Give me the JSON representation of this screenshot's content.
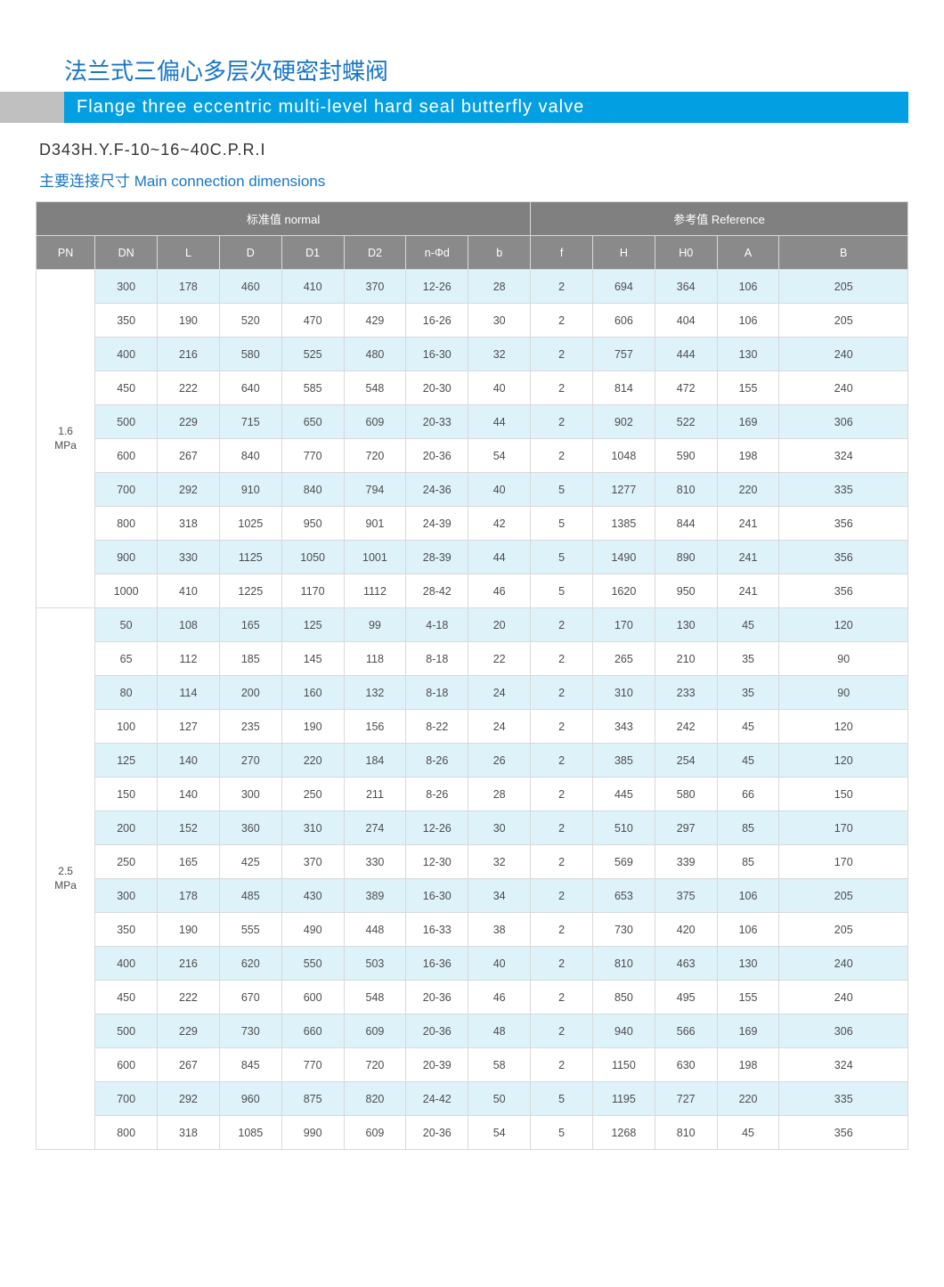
{
  "colors": {
    "title": "#1976c8",
    "banner_grey": "#c0c0c0",
    "banner_blue": "#039fe3",
    "header_bg_top": "#808080",
    "header_bg_cols": "#8a8a8a",
    "stripe_blue": "#def2fa",
    "stripe_white": "#ffffff",
    "border": "#d9d9d9",
    "text": "#4d4d4d"
  },
  "titles": {
    "chinese": "法兰式三偏心多层次硬密封蝶阀",
    "english": "Flange three eccentric multi-level hard seal butterfly valve",
    "model": "D343H.Y.F-10~16~40C.P.R.I",
    "subtitle": "主要连接尺寸   Main connection  dimensions"
  },
  "table": {
    "top_headers": {
      "normal": "标准值 normal",
      "reference": "参考值 Reference"
    },
    "columns": [
      "PN",
      "DN",
      "L",
      "D",
      "D1",
      "D2",
      "n-Φd",
      "b",
      "f",
      "H",
      "H0",
      "A",
      "B"
    ],
    "normal_cols": 8,
    "reference_cols": 5,
    "groups": [
      {
        "pn": "1.6\nMPa",
        "rows": [
          [
            "300",
            "178",
            "460",
            "410",
            "370",
            "12-26",
            "28",
            "2",
            "694",
            "364",
            "106",
            "205"
          ],
          [
            "350",
            "190",
            "520",
            "470",
            "429",
            "16-26",
            "30",
            "2",
            "606",
            "404",
            "106",
            "205"
          ],
          [
            "400",
            "216",
            "580",
            "525",
            "480",
            "16-30",
            "32",
            "2",
            "757",
            "444",
            "130",
            "240"
          ],
          [
            "450",
            "222",
            "640",
            "585",
            "548",
            "20-30",
            "40",
            "2",
            "814",
            "472",
            "155",
            "240"
          ],
          [
            "500",
            "229",
            "715",
            "650",
            "609",
            "20-33",
            "44",
            "2",
            "902",
            "522",
            "169",
            "306"
          ],
          [
            "600",
            "267",
            "840",
            "770",
            "720",
            "20-36",
            "54",
            "2",
            "1048",
            "590",
            "198",
            "324"
          ],
          [
            "700",
            "292",
            "910",
            "840",
            "794",
            "24-36",
            "40",
            "5",
            "1277",
            "810",
            "220",
            "335"
          ],
          [
            "800",
            "318",
            "1025",
            "950",
            "901",
            "24-39",
            "42",
            "5",
            "1385",
            "844",
            "241",
            "356"
          ],
          [
            "900",
            "330",
            "1125",
            "1050",
            "1001",
            "28-39",
            "44",
            "5",
            "1490",
            "890",
            "241",
            "356"
          ],
          [
            "1000",
            "410",
            "1225",
            "1170",
            "1112",
            "28-42",
            "46",
            "5",
            "1620",
            "950",
            "241",
            "356"
          ]
        ]
      },
      {
        "pn": "2.5\nMPa",
        "rows": [
          [
            "50",
            "108",
            "165",
            "125",
            "99",
            "4-18",
            "20",
            "2",
            "170",
            "130",
            "45",
            "120"
          ],
          [
            "65",
            "112",
            "185",
            "145",
            "118",
            "8-18",
            "22",
            "2",
            "265",
            "210",
            "35",
            "90"
          ],
          [
            "80",
            "114",
            "200",
            "160",
            "132",
            "8-18",
            "24",
            "2",
            "310",
            "233",
            "35",
            "90"
          ],
          [
            "100",
            "127",
            "235",
            "190",
            "156",
            "8-22",
            "24",
            "2",
            "343",
            "242",
            "45",
            "120"
          ],
          [
            "125",
            "140",
            "270",
            "220",
            "184",
            "8-26",
            "26",
            "2",
            "385",
            "254",
            "45",
            "120"
          ],
          [
            "150",
            "140",
            "300",
            "250",
            "211",
            "8-26",
            "28",
            "2",
            "445",
            "580",
            "66",
            "150"
          ],
          [
            "200",
            "152",
            "360",
            "310",
            "274",
            "12-26",
            "30",
            "2",
            "510",
            "297",
            "85",
            "170"
          ],
          [
            "250",
            "165",
            "425",
            "370",
            "330",
            "12-30",
            "32",
            "2",
            "569",
            "339",
            "85",
            "170"
          ],
          [
            "300",
            "178",
            "485",
            "430",
            "389",
            "16-30",
            "34",
            "2",
            "653",
            "375",
            "106",
            "205"
          ],
          [
            "350",
            "190",
            "555",
            "490",
            "448",
            "16-33",
            "38",
            "2",
            "730",
            "420",
            "106",
            "205"
          ],
          [
            "400",
            "216",
            "620",
            "550",
            "503",
            "16-36",
            "40",
            "2",
            "810",
            "463",
            "130",
            "240"
          ],
          [
            "450",
            "222",
            "670",
            "600",
            "548",
            "20-36",
            "46",
            "2",
            "850",
            "495",
            "155",
            "240"
          ],
          [
            "500",
            "229",
            "730",
            "660",
            "609",
            "20-36",
            "48",
            "2",
            "940",
            "566",
            "169",
            "306"
          ],
          [
            "600",
            "267",
            "845",
            "770",
            "720",
            "20-39",
            "58",
            "2",
            "1150",
            "630",
            "198",
            "324"
          ],
          [
            "700",
            "292",
            "960",
            "875",
            "820",
            "24-42",
            "50",
            "5",
            "1195",
            "727",
            "220",
            "335"
          ],
          [
            "800",
            "318",
            "1085",
            "990",
            "609",
            "20-36",
            "54",
            "5",
            "1268",
            "810",
            "45",
            "356"
          ]
        ]
      }
    ]
  }
}
